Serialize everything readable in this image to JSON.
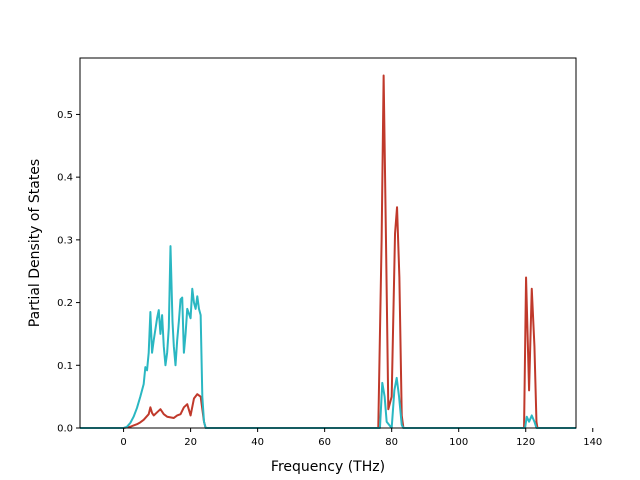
{
  "chart_data": {
    "type": "line",
    "title": "",
    "xlabel": "Frequency (THz)",
    "ylabel": "Partial Density of States",
    "xlim": [
      -13,
      135
    ],
    "ylim": [
      0,
      0.59
    ],
    "xticks": [
      0,
      20,
      40,
      60,
      80,
      100,
      120,
      140
    ],
    "xtick_labels": [
      "0",
      "20",
      "40",
      "60",
      "80",
      "100",
      "120",
      "140"
    ],
    "yticks": [
      0.0,
      0.1,
      0.2,
      0.3,
      0.4,
      0.5
    ],
    "ytick_labels": [
      "0.0",
      "0.1",
      "0.2",
      "0.3",
      "0.4",
      "0.5"
    ],
    "grid": false,
    "legend": "none",
    "series": [
      {
        "color": "#c0392b",
        "points": [
          [
            -13,
            0
          ],
          [
            -3,
            0
          ],
          [
            0,
            0.0
          ],
          [
            2,
            0.002
          ],
          [
            3,
            0.004
          ],
          [
            4,
            0.006
          ],
          [
            5,
            0.009
          ],
          [
            6,
            0.013
          ],
          [
            7,
            0.019
          ],
          [
            7.5,
            0.022
          ],
          [
            8,
            0.033
          ],
          [
            8.5,
            0.024
          ],
          [
            9,
            0.02
          ],
          [
            10,
            0.025
          ],
          [
            11,
            0.03
          ],
          [
            12,
            0.022
          ],
          [
            13,
            0.018
          ],
          [
            14,
            0.017
          ],
          [
            15,
            0.016
          ],
          [
            16,
            0.02
          ],
          [
            17,
            0.022
          ],
          [
            18,
            0.033
          ],
          [
            19,
            0.038
          ],
          [
            20,
            0.02
          ],
          [
            21,
            0.047
          ],
          [
            22,
            0.054
          ],
          [
            23,
            0.05
          ],
          [
            24,
            0.01
          ],
          [
            24.5,
            0
          ],
          [
            76,
            0
          ],
          [
            77,
            0.3
          ],
          [
            77.6,
            0.562
          ],
          [
            78.3,
            0.3
          ],
          [
            79,
            0.03
          ],
          [
            80,
            0.05
          ],
          [
            81,
            0.31
          ],
          [
            81.6,
            0.352
          ],
          [
            82.3,
            0.24
          ],
          [
            83,
            0.02
          ],
          [
            83.5,
            0
          ],
          [
            119.5,
            0
          ],
          [
            120.1,
            0.24
          ],
          [
            121,
            0.06
          ],
          [
            121.8,
            0.222
          ],
          [
            122.6,
            0.13
          ],
          [
            123.2,
            0.01
          ],
          [
            123.5,
            0
          ],
          [
            135,
            0
          ]
        ]
      },
      {
        "color": "#2ab7c2",
        "points": [
          [
            -13,
            0
          ],
          [
            -3,
            0
          ],
          [
            0,
            0.0
          ],
          [
            1,
            0.002
          ],
          [
            2,
            0.008
          ],
          [
            3,
            0.018
          ],
          [
            4,
            0.032
          ],
          [
            5,
            0.05
          ],
          [
            6,
            0.07
          ],
          [
            6.5,
            0.097
          ],
          [
            7,
            0.092
          ],
          [
            7.5,
            0.12
          ],
          [
            8,
            0.185
          ],
          [
            8.5,
            0.12
          ],
          [
            9,
            0.14
          ],
          [
            10,
            0.175
          ],
          [
            10.5,
            0.188
          ],
          [
            11,
            0.15
          ],
          [
            11.5,
            0.18
          ],
          [
            12,
            0.13
          ],
          [
            12.5,
            0.1
          ],
          [
            13,
            0.12
          ],
          [
            13.5,
            0.16
          ],
          [
            14,
            0.29
          ],
          [
            14.6,
            0.17
          ],
          [
            15,
            0.13
          ],
          [
            15.5,
            0.1
          ],
          [
            16,
            0.14
          ],
          [
            16.5,
            0.17
          ],
          [
            17,
            0.205
          ],
          [
            17.5,
            0.208
          ],
          [
            18,
            0.12
          ],
          [
            18.5,
            0.15
          ],
          [
            19,
            0.19
          ],
          [
            20,
            0.175
          ],
          [
            20.5,
            0.222
          ],
          [
            21,
            0.2
          ],
          [
            21.5,
            0.19
          ],
          [
            22,
            0.21
          ],
          [
            22.5,
            0.19
          ],
          [
            23,
            0.18
          ],
          [
            23.5,
            0.05
          ],
          [
            24,
            0.01
          ],
          [
            24.5,
            0
          ],
          [
            76.5,
            0
          ],
          [
            77.2,
            0.072
          ],
          [
            77.9,
            0.05
          ],
          [
            78.5,
            0.01
          ],
          [
            80,
            0
          ],
          [
            80.8,
            0.06
          ],
          [
            81.5,
            0.08
          ],
          [
            82.2,
            0.05
          ],
          [
            83,
            0.005
          ],
          [
            83.5,
            0
          ],
          [
            119.8,
            0
          ],
          [
            120.3,
            0.018
          ],
          [
            121,
            0.01
          ],
          [
            121.8,
            0.02
          ],
          [
            122.6,
            0.01
          ],
          [
            123.2,
            0
          ],
          [
            135,
            0
          ]
        ]
      }
    ]
  }
}
